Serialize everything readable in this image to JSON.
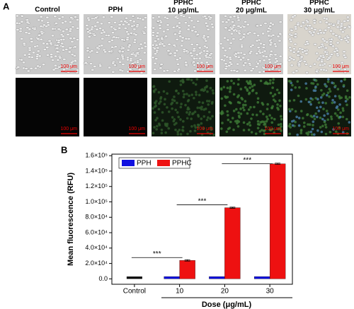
{
  "panel_a": {
    "label": "A",
    "headers": [
      [
        "Control"
      ],
      [
        "PPH"
      ],
      [
        "PPHC",
        "10 μg/mL"
      ],
      [
        "PPHC",
        "20 μg/mL"
      ],
      [
        "PPHC",
        "30 μg/mL"
      ]
    ],
    "scale_bar": "100 μm"
  },
  "chart_data": {
    "type": "bar",
    "panel_label": "B",
    "y_label": "Mean fluorescence (RFU)",
    "x_label": "Dose (μg/mL)",
    "categories": [
      "Control",
      "10",
      "20",
      "30"
    ],
    "control_bar": {
      "value": 3000,
      "color": "#000000"
    },
    "series": [
      {
        "name": "PPH",
        "color": "#1010e0",
        "values": [
          null,
          3000,
          3000,
          3000
        ]
      },
      {
        "name": "PPHC",
        "color": "#ee1111",
        "values": [
          null,
          24000,
          92500,
          149500
        ],
        "errors": [
          null,
          900,
          700,
          800
        ]
      }
    ],
    "significance": [
      "***",
      "***",
      "***"
    ],
    "ylim": [
      -7000,
      162000
    ],
    "yticks": [
      {
        "value": 0,
        "label": "0.0"
      },
      {
        "value": 20000,
        "label": "2.0×10⁴"
      },
      {
        "value": 40000,
        "label": "4.0×10⁴"
      },
      {
        "value": 60000,
        "label": "6.0×10⁴"
      },
      {
        "value": 80000,
        "label": "8.0×10⁴"
      },
      {
        "value": 100000,
        "label": "1.0×10⁵"
      },
      {
        "value": 120000,
        "label": "1.2×10⁵"
      },
      {
        "value": 140000,
        "label": "1.4×10⁵"
      },
      {
        "value": 160000,
        "label": "1.6×10⁵"
      }
    ],
    "legend": "upper left"
  }
}
